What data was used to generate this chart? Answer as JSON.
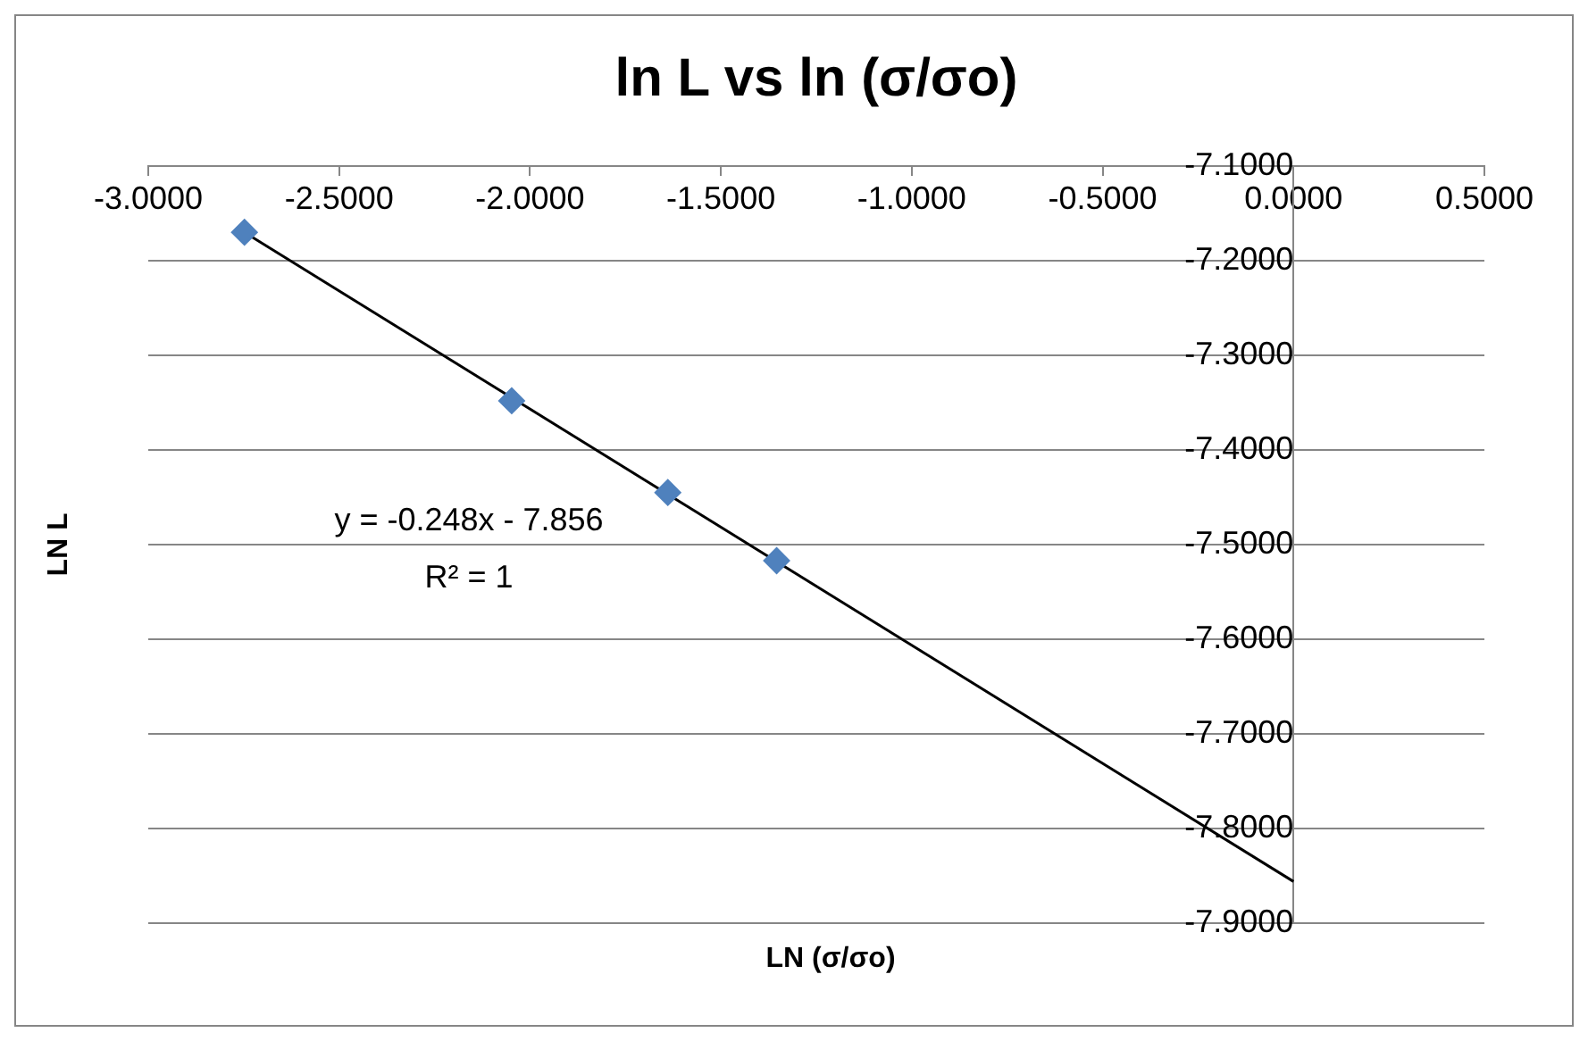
{
  "chart_data": {
    "type": "scatter",
    "title": "ln L vs ln (σ/σo)",
    "xlabel": "LN (σ/σo)",
    "ylabel": "LN L",
    "annotations": [
      "y = -0.248x - 7.856",
      "R² = 1"
    ],
    "series": [
      {
        "color": "#4f81bd",
        "marker": "diamond",
        "x": [
          -2.748,
          -2.048,
          -1.639,
          -1.354
        ],
        "values": [
          -7.17,
          -7.348,
          -7.445,
          -7.517
        ]
      },
      {
        "type": "line",
        "color": "#000000",
        "marker": "none",
        "x": [
          -2.748,
          0
        ],
        "values": [
          -7.17,
          -7.856
        ]
      }
    ],
    "grid": "y",
    "xlim": [
      -3,
      0.5
    ],
    "ylim": [
      -7.9,
      -7.1
    ],
    "xticks": [
      {
        "value": -3,
        "label": "-3.0000"
      },
      {
        "value": -2.5,
        "label": "-2.5000"
      },
      {
        "value": -2,
        "label": "-2.0000"
      },
      {
        "value": -1.5,
        "label": "-1.5000"
      },
      {
        "value": -1,
        "label": "-1.0000"
      },
      {
        "value": -0.5,
        "label": "-0.5000"
      },
      {
        "value": 0,
        "label": "0.0000"
      },
      {
        "value": 0.5,
        "label": "0.5000"
      }
    ],
    "yticks": [
      {
        "value": -7.1,
        "label": "-7.1000"
      },
      {
        "value": -7.2,
        "label": "-7.2000"
      },
      {
        "value": -7.3,
        "label": "-7.3000"
      },
      {
        "value": -7.4,
        "label": "-7.4000"
      },
      {
        "value": -7.5,
        "label": "-7.5000"
      },
      {
        "value": -7.6,
        "label": "-7.6000"
      },
      {
        "value": -7.7,
        "label": "-7.7000"
      },
      {
        "value": -7.8,
        "label": "-7.8000"
      },
      {
        "value": -7.9,
        "label": "-7.9000"
      }
    ]
  }
}
